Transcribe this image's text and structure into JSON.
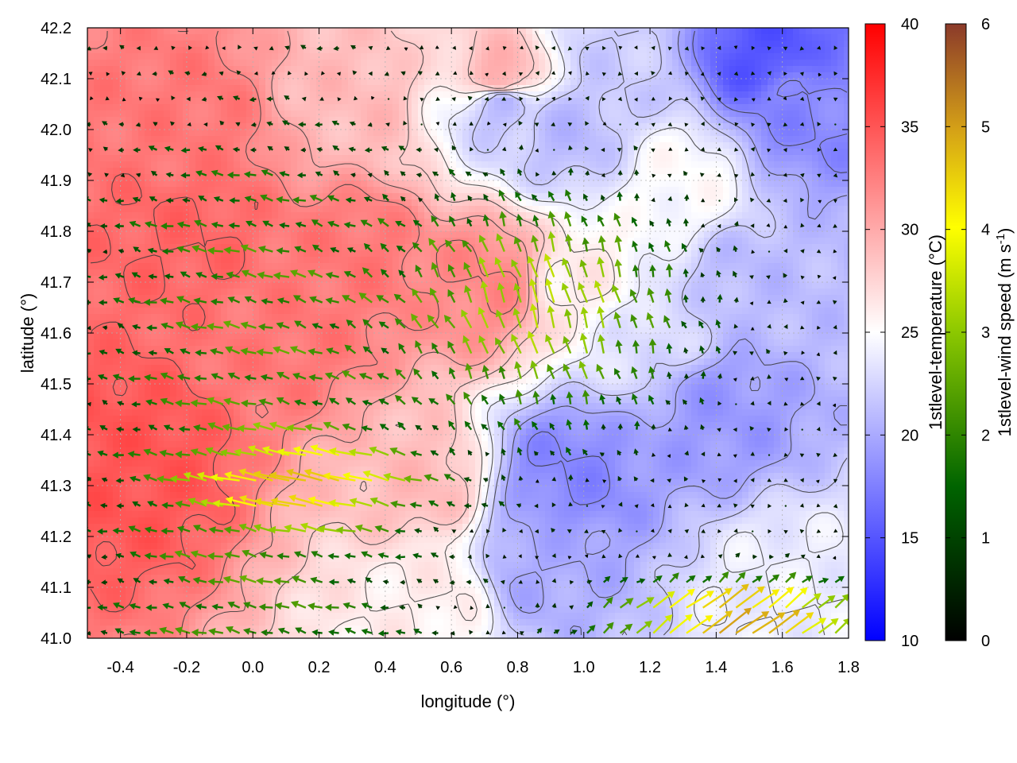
{
  "chart_data": {
    "type": "heatmap",
    "subtype": "vector-field-over-color-map",
    "title": "",
    "xlabel": "longitude (°)",
    "ylabel": "latitude (°)",
    "xlim": [
      -0.5,
      1.8
    ],
    "ylim": [
      41.0,
      42.2
    ],
    "x_ticks": [
      "-0.4",
      "-0.2",
      "0.0",
      "0.2",
      "0.4",
      "0.6",
      "0.8",
      "1.0",
      "1.2",
      "1.4",
      "1.6",
      "1.8"
    ],
    "y_ticks": [
      "41.0",
      "41.1",
      "41.2",
      "41.3",
      "41.4",
      "41.5",
      "41.6",
      "41.7",
      "41.8",
      "41.9",
      "42.0",
      "42.1",
      "42.2"
    ],
    "grid": true,
    "temperature_colorbar": {
      "label": "1stlevel-temperature (°C)",
      "range": [
        10,
        40
      ],
      "ticks": [
        "10",
        "15",
        "20",
        "25",
        "30",
        "35",
        "40"
      ],
      "colors": [
        "#0000ff",
        "#ffffff",
        "#ff0000"
      ]
    },
    "wind_colorbar": {
      "label_main": "1stlevel-wind speed (m s",
      "label_exp": "-1",
      "label_end": ")",
      "range": [
        0,
        6
      ],
      "ticks": [
        "0",
        "1",
        "2",
        "3",
        "4",
        "5",
        "6"
      ],
      "colors": [
        "#000000",
        "#006400",
        "#8cc800",
        "#ffff00",
        "#d4a017",
        "#a0522d",
        "#8b3a2a"
      ]
    },
    "temperature_field_samples": [
      {
        "lon": -0.35,
        "lat": 41.35,
        "t": 35
      },
      {
        "lon": -0.2,
        "lat": 41.8,
        "t": 34
      },
      {
        "lon": -0.2,
        "lat": 42.0,
        "t": 33
      },
      {
        "lon": 0.1,
        "lat": 41.6,
        "t": 33
      },
      {
        "lon": 0.3,
        "lat": 41.75,
        "t": 33
      },
      {
        "lon": 0.5,
        "lat": 41.3,
        "t": 29
      },
      {
        "lon": 0.55,
        "lat": 41.1,
        "t": 26
      },
      {
        "lon": 0.7,
        "lat": 41.7,
        "t": 32
      },
      {
        "lon": 0.75,
        "lat": 42.1,
        "t": 30
      },
      {
        "lon": 0.85,
        "lat": 41.15,
        "t": 20
      },
      {
        "lon": 0.95,
        "lat": 41.32,
        "t": 18
      },
      {
        "lon": 0.75,
        "lat": 42.05,
        "t": 21
      },
      {
        "lon": 0.95,
        "lat": 42.0,
        "t": 21
      },
      {
        "lon": 1.2,
        "lat": 41.6,
        "t": 23
      },
      {
        "lon": 1.4,
        "lat": 41.45,
        "t": 19
      },
      {
        "lon": 1.5,
        "lat": 41.7,
        "t": 21
      },
      {
        "lon": 1.3,
        "lat": 41.9,
        "t": 25
      },
      {
        "lon": 1.55,
        "lat": 42.15,
        "t": 15
      },
      {
        "lon": 1.65,
        "lat": 42.05,
        "t": 18
      },
      {
        "lon": 1.1,
        "lat": 42.15,
        "t": 22
      },
      {
        "lon": 1.6,
        "lat": 41.1,
        "t": 24
      },
      {
        "lon": 1.0,
        "lat": 41.7,
        "t": 26
      },
      {
        "lon": 0.3,
        "lat": 42.05,
        "t": 29
      }
    ],
    "wind_field_description": "Arrow grid roughly every 0.05° lon × 0.05° lat; westward flow over western area (0.0–0.5 lon, 41.2–41.4 lat) at 3–4 m/s; northward/north-westward flow 0.5–1.5 lon, 41.5–41.9 lat at 2–3 m/s; strong north-eastward flow (4–5 m/s) in the south-east corner (1.0–1.8 lon, 41.0–41.15 lat)."
  }
}
